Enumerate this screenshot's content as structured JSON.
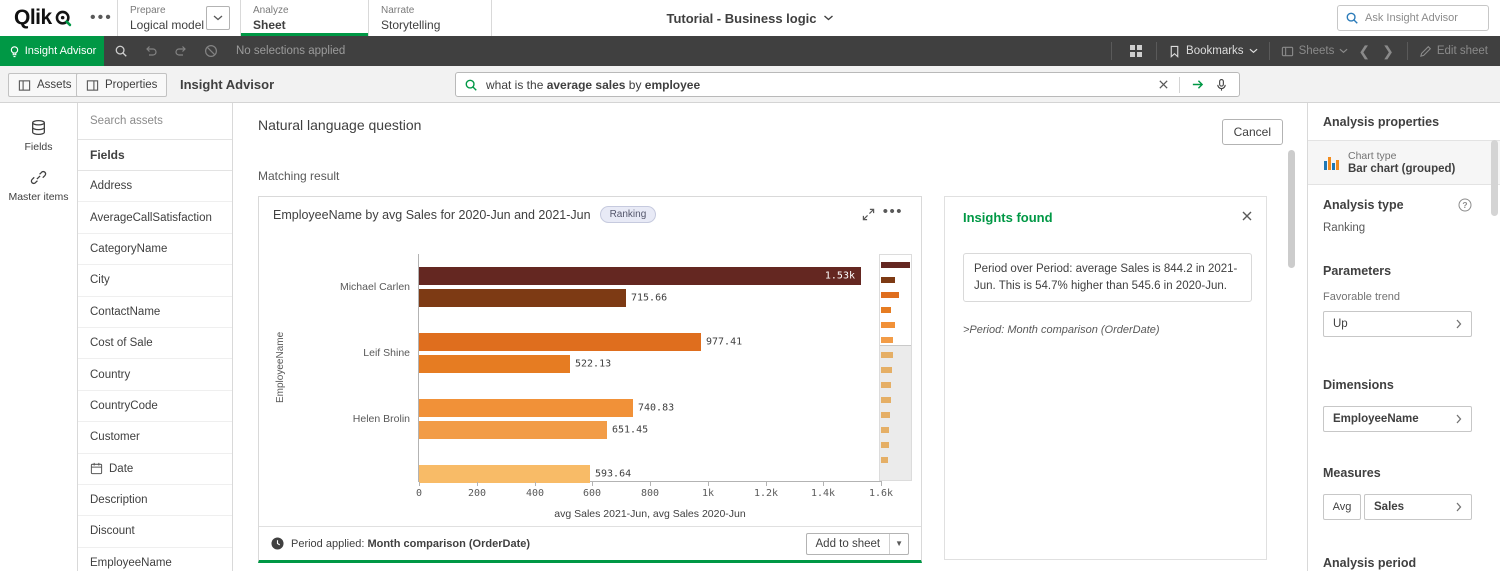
{
  "topbar": {
    "logo_text": "Qlik",
    "nav": [
      {
        "section": "Prepare",
        "label": "Logical model"
      },
      {
        "section": "Analyze",
        "label": "Sheet"
      },
      {
        "section": "Narrate",
        "label": "Storytelling"
      }
    ],
    "app_title": "Tutorial - Business logic",
    "hub_search_placeholder": "Ask Insight Advisor"
  },
  "toolbar": {
    "insight_advisor_label": "Insight Advisor",
    "no_selections_text": "No selections applied",
    "bookmarks_label": "Bookmarks",
    "sheets_label": "Sheets",
    "edit_sheet_label": "Edit sheet"
  },
  "subbar": {
    "assets_label": "Assets",
    "properties_label": "Properties",
    "title": "Insight Advisor",
    "query_parts": [
      {
        "text": "what is the ",
        "bold": false
      },
      {
        "text": "average sales",
        "bold": true
      },
      {
        "text": " by ",
        "bold": false
      },
      {
        "text": "employee",
        "bold": true
      }
    ]
  },
  "sidebar": {
    "fields_label": "Fields",
    "master_items_label": "Master items"
  },
  "assets_panel": {
    "search_placeholder": "Search assets",
    "header": "Fields",
    "fields": [
      {
        "label": "Address"
      },
      {
        "label": "AverageCallSatisfaction"
      },
      {
        "label": "CategoryName"
      },
      {
        "label": "City"
      },
      {
        "label": "ContactName"
      },
      {
        "label": "Cost of Sale"
      },
      {
        "label": "Country"
      },
      {
        "label": "CountryCode"
      },
      {
        "label": "Customer"
      },
      {
        "label": "Date",
        "icon": "calendar"
      },
      {
        "label": "Description"
      },
      {
        "label": "Discount"
      },
      {
        "label": "EmployeeName"
      }
    ]
  },
  "main": {
    "nlq_title": "Natural language question",
    "cancel_label": "Cancel",
    "matching_result": "Matching result"
  },
  "chart_card": {
    "title": "EmployeeName by avg Sales for 2020-Jun and 2021-Jun",
    "badge": "Ranking",
    "footer_label": "Period applied:",
    "footer_value": "Month comparison (OrderDate)",
    "add_to_sheet_label": "Add to sheet"
  },
  "insights": {
    "title": "Insights found",
    "body": "Period over Period: average Sales is 844.2 in 2021-Jun. This is 54.7% higher than 545.6 in 2020-Jun.",
    "period_note": ">Period: Month comparison (OrderDate)"
  },
  "chart_data": {
    "type": "bar",
    "orientation": "horizontal",
    "title": "EmployeeName by avg Sales for 2020-Jun and 2021-Jun",
    "ylabel": "EmployeeName",
    "xlabel": "avg Sales 2021-Jun, avg Sales 2020-Jun",
    "xlim": [
      0,
      1600
    ],
    "x_ticks": [
      {
        "label": "0",
        "value": 0
      },
      {
        "label": "200",
        "value": 200
      },
      {
        "label": "400",
        "value": 400
      },
      {
        "label": "600",
        "value": 600
      },
      {
        "label": "800",
        "value": 800
      },
      {
        "label": "1k",
        "value": 1000
      },
      {
        "label": "1.2k",
        "value": 1200
      },
      {
        "label": "1.4k",
        "value": 1400
      },
      {
        "label": "1.6k",
        "value": 1600
      }
    ],
    "series_names": [
      "avg Sales 2021-Jun",
      "avg Sales 2020-Jun"
    ],
    "groups": [
      {
        "category": "Michael Carlen",
        "bars": [
          {
            "value": 1530,
            "label": "1.53k",
            "color": "#642721",
            "label_inside": true
          },
          {
            "value": 715.66,
            "label": "715.66",
            "color": "#7d3a14"
          }
        ]
      },
      {
        "category": "Leif Shine",
        "bars": [
          {
            "value": 977.41,
            "label": "977.41",
            "color": "#df6e1e"
          },
          {
            "value": 522.13,
            "label": "522.13",
            "color": "#e67c22"
          }
        ]
      },
      {
        "category": "Helen Brolin",
        "bars": [
          {
            "value": 740.83,
            "label": "740.83",
            "color": "#f19138"
          },
          {
            "value": 651.45,
            "label": "651.45",
            "color": "#f29c47"
          }
        ]
      },
      {
        "category": "",
        "bars": [
          {
            "value": 593.64,
            "label": "593.64",
            "color": "#f8bb67"
          }
        ]
      }
    ],
    "navigator": {
      "bar_fractions": [
        1,
        0.47,
        0.63,
        0.34,
        0.48,
        0.42,
        0.4,
        0.38,
        0.36,
        0.34,
        0.31,
        0.29,
        0.27,
        0.25
      ],
      "bar_colors": [
        "#642721",
        "#7d3a14",
        "#df6e1e",
        "#e67c22",
        "#f19138",
        "#f29c47",
        "#f8bb67",
        "#f8bb67",
        "#f8bb67",
        "#f8bb67",
        "#f8bb67",
        "#f8bb67",
        "#f8bb67",
        "#f8bb67"
      ],
      "window_fraction": 0.4
    }
  },
  "properties_panel": {
    "title": "Analysis properties",
    "chart_type_label": "Chart type",
    "chart_type_value": "Bar chart (grouped)",
    "analysis_type_label": "Analysis type",
    "analysis_type_value": "Ranking",
    "parameters_label": "Parameters",
    "favorable_trend_label": "Favorable trend",
    "favorable_trend_value": "Up",
    "dimensions_label": "Dimensions",
    "dimension_value": "EmployeeName",
    "measures_label": "Measures",
    "measure_aggregation": "Avg",
    "measure_value": "Sales",
    "analysis_period_label": "Analysis period"
  },
  "colors": {
    "qlik_green": "#009845",
    "toolbar_bg": "#404040"
  }
}
